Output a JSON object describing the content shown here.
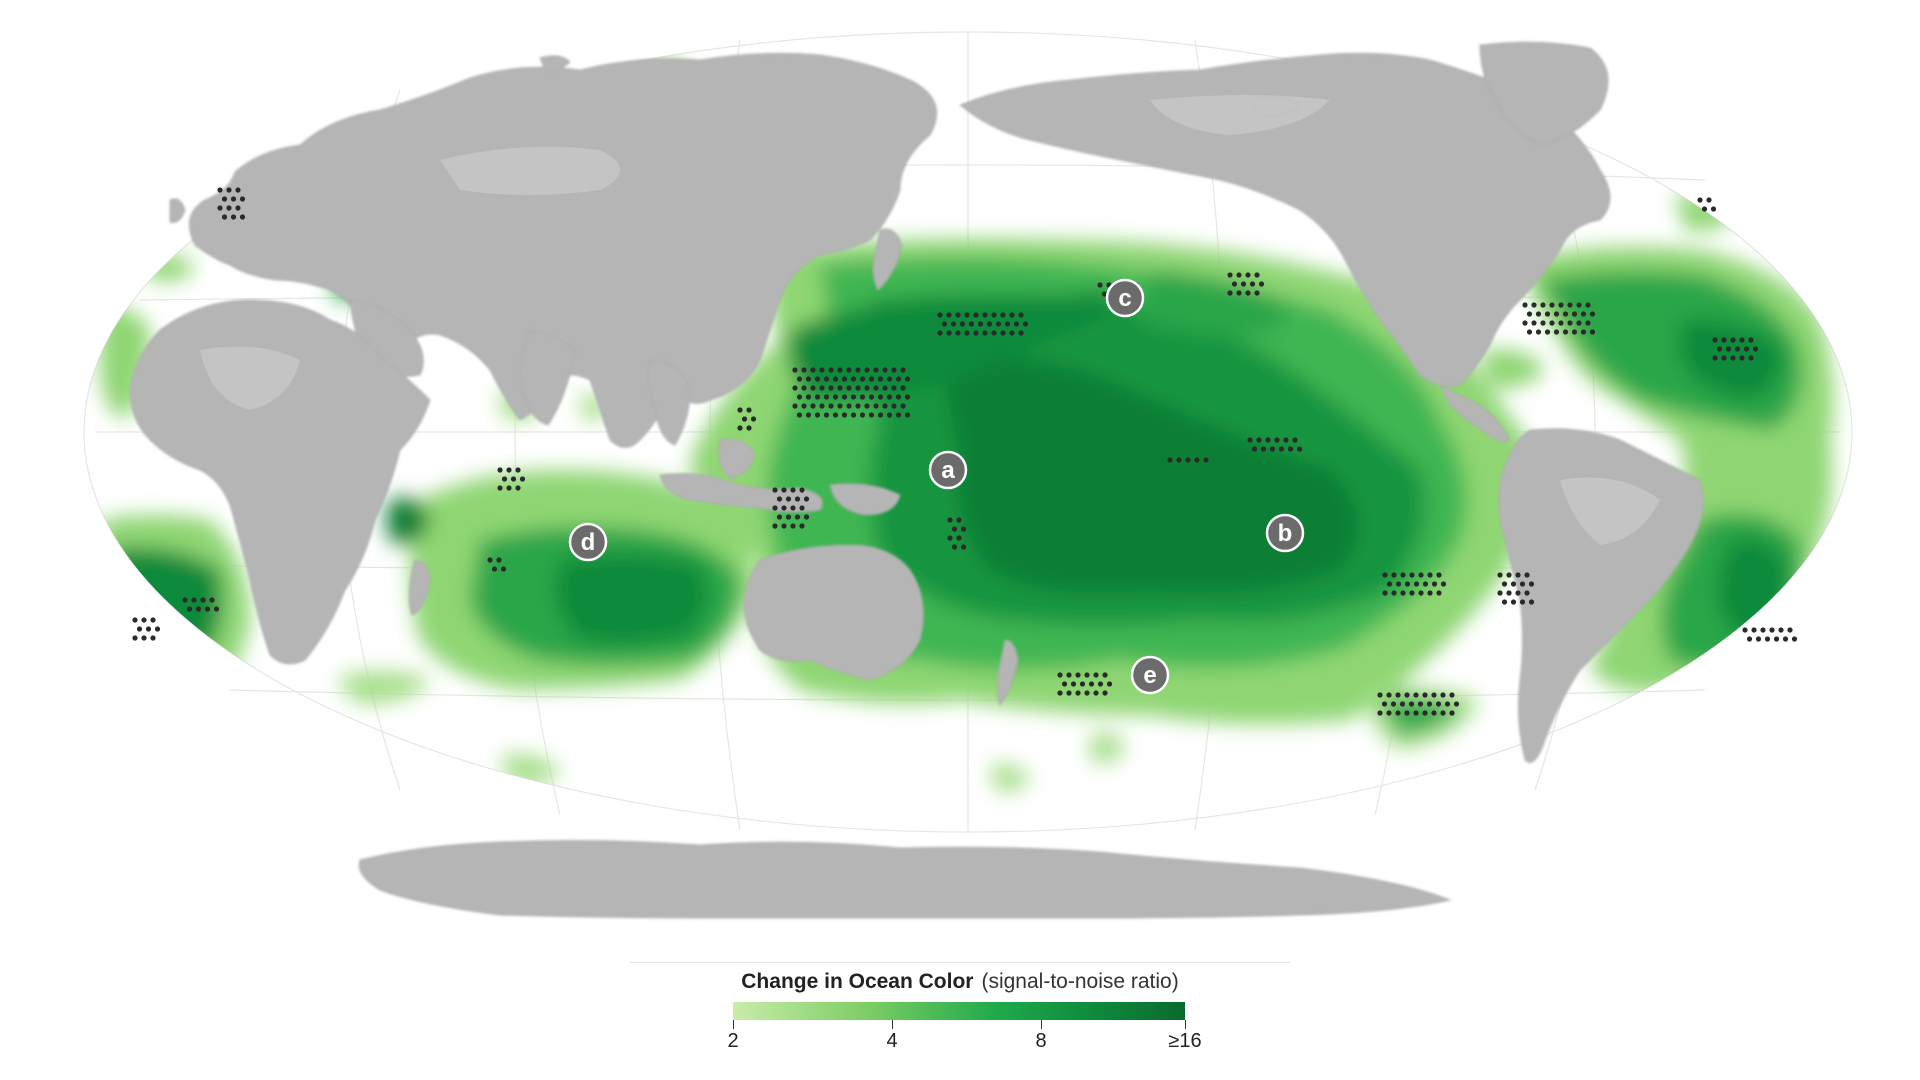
{
  "legend": {
    "title": "Change in Ocean Color",
    "subtitle": "(signal-to-noise ratio)",
    "ticks": [
      "2",
      "4",
      "8",
      "≥16"
    ],
    "colors": [
      "#c9ecaa",
      "#88d36e",
      "#3fb34f",
      "#0e8a3c",
      "#0a6a2e"
    ]
  },
  "markers": [
    {
      "label": "a"
    },
    {
      "label": "b"
    },
    {
      "label": "c"
    },
    {
      "label": "d"
    },
    {
      "label": "e"
    }
  ],
  "map_colors": {
    "land": "#b5b5b5",
    "land_highlight": "#cfcfcf",
    "graticule": "#e6e6e6",
    "stipple": "#2a2a2a",
    "marker_fill": "#6b6b6b",
    "marker_stroke": "#ffffff"
  }
}
